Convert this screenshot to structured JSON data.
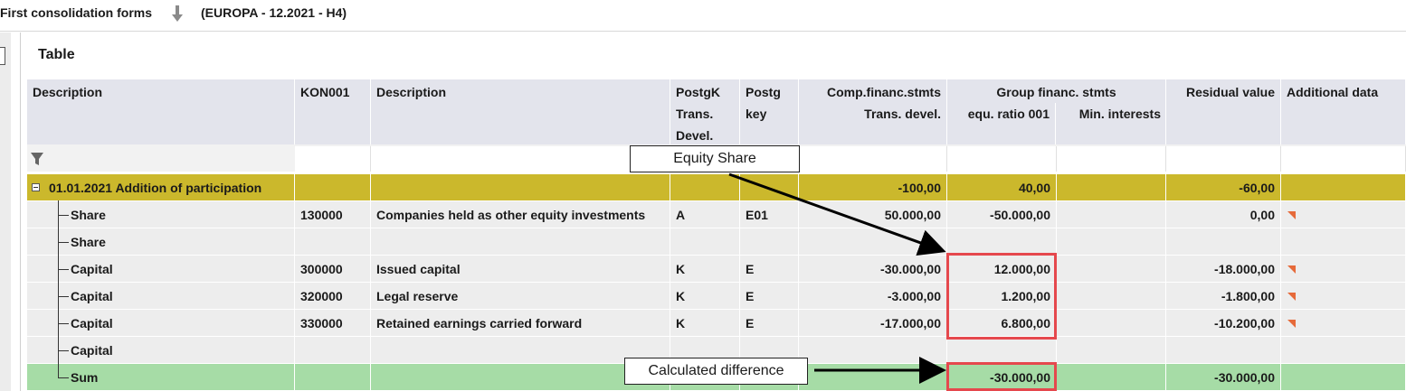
{
  "header": {
    "app_title": "First consolidation forms",
    "context": "(EUROPA - 12.2021 - H4)"
  },
  "panel": {
    "title": "Table"
  },
  "columns": {
    "c1": {
      "line1": "Description"
    },
    "c2": {
      "line1": "KON001"
    },
    "c3": {
      "line1": "Description"
    },
    "c4": {
      "line1": "PostgK",
      "line2": "Trans.",
      "line3": "Devel."
    },
    "c5": {
      "line1": "Postg",
      "line2": "key"
    },
    "c6": {
      "line1": "Comp.financ.stmts",
      "line2": "Trans. devel."
    },
    "group": {
      "label": "Group financ. stmts"
    },
    "c7": {
      "line2": "equ. ratio 001"
    },
    "c8": {
      "line2": "Min. interests"
    },
    "c9": {
      "line1": "Residual value"
    },
    "c10": {
      "line1": "Additional data"
    }
  },
  "rows": [
    {
      "desc": "01.01.2021  Addition of participation",
      "kon": "",
      "desc2": "",
      "pk": "",
      "key": "",
      "comp": "-100,00",
      "equ": "40,00",
      "min": "",
      "resid": "-60,00",
      "style": "gold"
    },
    {
      "desc": "Share",
      "kon": "130000",
      "desc2": "Companies held as other equity investments",
      "pk": "A",
      "key": "E01",
      "comp": "50.000,00",
      "equ": "-50.000,00",
      "min": "",
      "resid": "0,00",
      "style": "grey"
    },
    {
      "desc": "Share",
      "kon": "",
      "desc2": "",
      "pk": "",
      "key": "",
      "comp": "",
      "equ": "",
      "min": "",
      "resid": "",
      "style": "grey"
    },
    {
      "desc": "Capital",
      "kon": "300000",
      "desc2": "Issued capital",
      "pk": "K",
      "key": "E",
      "comp": "-30.000,00",
      "equ": "12.000,00",
      "min": "",
      "resid": "-18.000,00",
      "style": "grey"
    },
    {
      "desc": "Capital",
      "kon": "320000",
      "desc2": "Legal reserve",
      "pk": "K",
      "key": "E",
      "comp": "-3.000,00",
      "equ": "1.200,00",
      "min": "",
      "resid": "-1.800,00",
      "style": "grey"
    },
    {
      "desc": "Capital",
      "kon": "330000",
      "desc2": "Retained earnings carried forward",
      "pk": "K",
      "key": "E",
      "comp": "-17.000,00",
      "equ": "6.800,00",
      "min": "",
      "resid": "-10.200,00",
      "style": "grey"
    },
    {
      "desc": "Capital",
      "kon": "",
      "desc2": "",
      "pk": "",
      "key": "",
      "comp": "",
      "equ": "",
      "min": "",
      "resid": "",
      "style": "grey"
    },
    {
      "desc": "Sum",
      "kon": "",
      "desc2": "",
      "pk": "",
      "key": "",
      "comp": "",
      "equ": "-30.000,00",
      "min": "",
      "resid": "-30.000,00",
      "style": "green"
    }
  ],
  "annotations": {
    "equity_share": "Equity Share",
    "calculated_difference": "Calculated difference"
  },
  "colors": {
    "header_bg": "#e3e4ec",
    "group_row": "#cbb82c",
    "sum_row": "#a6dca6",
    "highlight_box": "#e5484d",
    "flag": "#e66a3a"
  }
}
